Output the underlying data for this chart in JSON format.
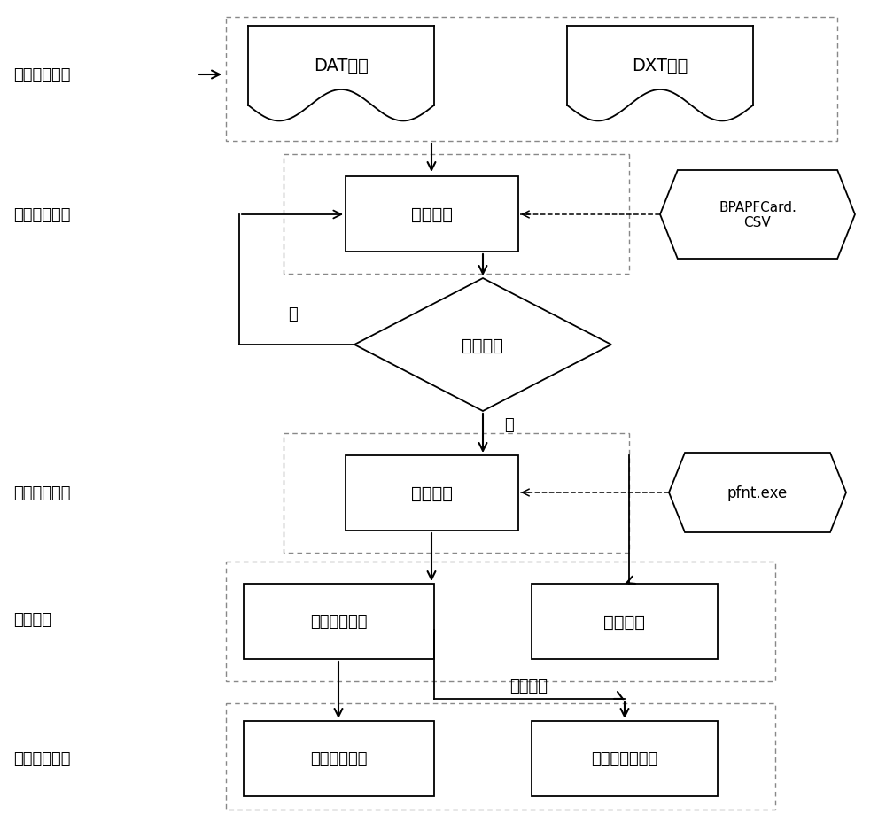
{
  "bg_color": "#ffffff",
  "module_labels": {
    "data_input": "数据输入模块",
    "param_check": "参数校核模块",
    "flow_calc": "潮流计算模块",
    "analysis": "解析模块",
    "result_display": "结果展示模块"
  },
  "box_labels": {
    "dat_file": "DAT文件",
    "dxt_file": "DXT文件",
    "param_verify": "参数校核",
    "is_reasonable": "是否合理",
    "flow_calculate": "潮流计算",
    "flow_result_analysis": "潮流结果解析",
    "graphic_analysis": "图形解析",
    "stat_analysis": "统计分析结果",
    "visual_display": "可视化图形展示"
  },
  "external_labels": {
    "bpa_csv": "BPAPFCard.\nCSV",
    "pfnt_exe": "pfnt.exe"
  },
  "annotations": {
    "yes": "是",
    "no": "否",
    "assoc_result": "关联结果"
  },
  "figsize": [
    10.0,
    9.29
  ],
  "dpi": 100
}
